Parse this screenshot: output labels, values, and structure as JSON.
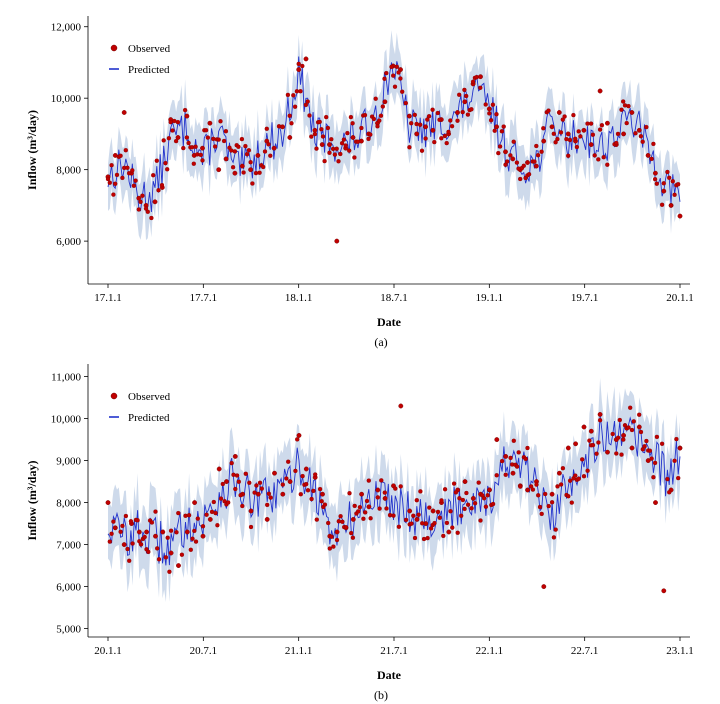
{
  "chart_data": [
    {
      "type": "line",
      "caption": "(a)",
      "xlabel": "Date",
      "ylabel": "Inflow (m³/day)",
      "x_ticks": [
        "17.1.1",
        "17.7.1",
        "18.1.1",
        "18.7.1",
        "19.1.1",
        "19.7.1",
        "20.1.1"
      ],
      "x_range": [
        "2017-01-01",
        "2020-01-01"
      ],
      "ylim": [
        4800,
        12300
      ],
      "y_ticks": [
        6000,
        8000,
        10000,
        12000
      ],
      "y_tick_labels": [
        "6,000",
        "8,000",
        "10,000",
        "12,000"
      ],
      "grid": false,
      "legend": {
        "position": "top-left",
        "entries": [
          "Observed",
          "Predicted"
        ]
      },
      "colors": {
        "observed": "#c00000",
        "predicted": "#2233cc",
        "band": "#c5d3e8"
      },
      "series": [
        {
          "name": "Predicted",
          "kind": "line",
          "x": [
            "2017-01-01",
            "2017-02-01",
            "2017-03-01",
            "2017-04-01",
            "2017-05-01",
            "2017-06-01",
            "2017-07-01",
            "2017-08-01",
            "2017-09-01",
            "2017-10-01",
            "2017-11-01",
            "2017-12-01",
            "2018-01-01",
            "2018-02-01",
            "2018-03-01",
            "2018-04-01",
            "2018-05-01",
            "2018-06-01",
            "2018-07-01",
            "2018-08-01",
            "2018-09-01",
            "2018-10-01",
            "2018-11-01",
            "2018-12-01",
            "2019-01-01",
            "2019-02-01",
            "2019-03-01",
            "2019-04-01",
            "2019-05-01",
            "2019-06-01",
            "2019-07-01",
            "2019-08-01",
            "2019-09-01",
            "2019-10-01",
            "2019-11-01",
            "2019-12-01",
            "2020-01-01"
          ],
          "y": [
            7800,
            8200,
            7200,
            7400,
            8900,
            9200,
            8300,
            9100,
            8000,
            8200,
            8700,
            9000,
            10700,
            9000,
            8800,
            8700,
            9000,
            9700,
            11000,
            9200,
            9100,
            9300,
            9500,
            10200,
            9800,
            8600,
            8100,
            8200,
            9400,
            8800,
            9000,
            8600,
            9000,
            9500,
            8600,
            7700,
            7100
          ]
        },
        {
          "name": "Observed",
          "kind": "scatter",
          "x": [
            "2017-01-01",
            "2017-01-15",
            "2017-02-01",
            "2017-02-15",
            "2017-03-01",
            "2017-03-15",
            "2017-04-01",
            "2017-04-15",
            "2017-05-01",
            "2017-05-15",
            "2017-06-01",
            "2017-06-15",
            "2017-07-01",
            "2017-07-15",
            "2017-08-01",
            "2017-08-15",
            "2017-09-01",
            "2017-09-15",
            "2017-10-01",
            "2017-10-15",
            "2017-11-01",
            "2017-11-15",
            "2017-12-01",
            "2017-12-15",
            "2018-01-01",
            "2018-01-15",
            "2018-02-01",
            "2018-02-15",
            "2018-03-01",
            "2018-03-15",
            "2018-04-01",
            "2018-04-15",
            "2018-05-01",
            "2018-05-15",
            "2018-06-01",
            "2018-06-15",
            "2018-07-01",
            "2018-07-15",
            "2018-08-01",
            "2018-08-15",
            "2018-09-01",
            "2018-09-15",
            "2018-10-01",
            "2018-10-15",
            "2018-11-01",
            "2018-11-15",
            "2018-12-01",
            "2018-12-15",
            "2019-01-01",
            "2019-01-15",
            "2019-02-01",
            "2019-02-15",
            "2019-03-01",
            "2019-03-15",
            "2019-04-01",
            "2019-04-15",
            "2019-05-01",
            "2019-05-15",
            "2019-06-01",
            "2019-06-15",
            "2019-07-01",
            "2019-07-15",
            "2019-08-01",
            "2019-08-15",
            "2019-09-01",
            "2019-09-15",
            "2019-10-01",
            "2019-10-15",
            "2019-11-01",
            "2019-11-15",
            "2019-12-01",
            "2019-12-15",
            "2020-01-01"
          ],
          "y": [
            7800,
            8400,
            9600,
            7900,
            7200,
            7000,
            7100,
            7500,
            9400,
            8900,
            9500,
            8400,
            8600,
            9300,
            8000,
            8300,
            7900,
            8100,
            8000,
            8400,
            8800,
            8600,
            9200,
            8900,
            10800,
            11100,
            9100,
            8700,
            8700,
            6000,
            8600,
            8900,
            8800,
            9000,
            9300,
            9900,
            10900,
            10800,
            9500,
            9000,
            9200,
            9100,
            9400,
            9000,
            9600,
            9900,
            10400,
            10600,
            9700,
            9200,
            8500,
            8300,
            8000,
            8200,
            8100,
            8800,
            9200,
            9600,
            9000,
            8800,
            9100,
            8700,
            10200,
            9300,
            8700,
            9000,
            9600,
            9100,
            8400,
            7900,
            7400,
            7000,
            6700
          ]
        }
      ]
    },
    {
      "type": "line",
      "caption": "(b)",
      "xlabel": "Date",
      "ylabel": "Inflow (m³/day)",
      "x_ticks": [
        "20.1.1",
        "20.7.1",
        "21.1.1",
        "21.7.1",
        "22.1.1",
        "22.7.1",
        "23.1.1"
      ],
      "x_range": [
        "2020-01-01",
        "2023-01-01"
      ],
      "ylim": [
        4800,
        11300
      ],
      "y_ticks": [
        5000,
        6000,
        7000,
        8000,
        9000,
        10000,
        11000
      ],
      "y_tick_labels": [
        "5,000",
        "6,000",
        "7,000",
        "8,000",
        "9,000",
        "10,000",
        "11,000"
      ],
      "grid": false,
      "legend": {
        "position": "top-left",
        "entries": [
          "Observed",
          "Predicted"
        ]
      },
      "colors": {
        "observed": "#c00000",
        "predicted": "#2233cc",
        "band": "#c5d3e8"
      },
      "series": [
        {
          "name": "Predicted",
          "kind": "line",
          "x": [
            "2020-01-01",
            "2020-02-01",
            "2020-03-01",
            "2020-04-01",
            "2020-05-01",
            "2020-06-01",
            "2020-07-01",
            "2020-08-01",
            "2020-09-01",
            "2020-10-01",
            "2020-11-01",
            "2020-12-01",
            "2021-01-01",
            "2021-02-01",
            "2021-03-01",
            "2021-04-01",
            "2021-05-01",
            "2021-06-01",
            "2021-07-01",
            "2021-08-01",
            "2021-09-01",
            "2021-10-01",
            "2021-11-01",
            "2021-12-01",
            "2022-01-01",
            "2022-02-01",
            "2022-03-01",
            "2022-04-01",
            "2022-05-01",
            "2022-06-01",
            "2022-07-01",
            "2022-08-01",
            "2022-09-01",
            "2022-10-01",
            "2022-11-01",
            "2022-12-01",
            "2023-01-01"
          ],
          "y": [
            7500,
            7200,
            7300,
            7100,
            6900,
            7600,
            7500,
            8200,
            8600,
            8000,
            8100,
            8300,
            8900,
            8300,
            7300,
            7400,
            7900,
            8200,
            8100,
            7800,
            7700,
            7600,
            7900,
            8200,
            8100,
            9000,
            8800,
            8400,
            7500,
            8600,
            9000,
            9600,
            9400,
            9600,
            9300,
            8600,
            9100
          ]
        },
        {
          "name": "Observed",
          "kind": "scatter",
          "x": [
            "2020-01-01",
            "2020-01-15",
            "2020-02-01",
            "2020-02-15",
            "2020-03-01",
            "2020-03-15",
            "2020-04-01",
            "2020-04-15",
            "2020-05-01",
            "2020-05-15",
            "2020-06-01",
            "2020-06-15",
            "2020-07-01",
            "2020-07-15",
            "2020-08-01",
            "2020-08-15",
            "2020-09-01",
            "2020-09-15",
            "2020-10-01",
            "2020-10-15",
            "2020-11-01",
            "2020-11-15",
            "2020-12-01",
            "2020-12-15",
            "2021-01-01",
            "2021-01-15",
            "2021-02-01",
            "2021-02-15",
            "2021-03-01",
            "2021-03-15",
            "2021-04-01",
            "2021-04-15",
            "2021-05-01",
            "2021-05-15",
            "2021-06-01",
            "2021-06-15",
            "2021-07-01",
            "2021-07-15",
            "2021-08-01",
            "2021-08-15",
            "2021-09-01",
            "2021-09-15",
            "2021-10-01",
            "2021-10-15",
            "2021-11-01",
            "2021-11-15",
            "2021-12-01",
            "2021-12-15",
            "2022-01-01",
            "2022-01-15",
            "2022-02-01",
            "2022-02-15",
            "2022-03-01",
            "2022-03-15",
            "2022-04-01",
            "2022-04-15",
            "2022-05-01",
            "2022-05-15",
            "2022-06-01",
            "2022-06-15",
            "2022-07-01",
            "2022-07-15",
            "2022-08-01",
            "2022-08-15",
            "2022-09-01",
            "2022-09-15",
            "2022-10-01",
            "2022-10-15",
            "2022-11-01",
            "2022-11-15",
            "2022-12-01",
            "2022-12-15",
            "2023-01-01"
          ],
          "y": [
            8000,
            7400,
            7000,
            7500,
            7300,
            7300,
            7200,
            7300,
            6800,
            6500,
            7300,
            8000,
            7200,
            7600,
            8800,
            8500,
            9100,
            8200,
            7800,
            8200,
            7600,
            8700,
            8200,
            8500,
            9600,
            8800,
            8600,
            8200,
            7200,
            7300,
            7400,
            7600,
            8200,
            7900,
            8300,
            8100,
            8400,
            10300,
            7800,
            7600,
            7500,
            7800,
            8000,
            7300,
            8300,
            8500,
            8100,
            8200,
            8300,
            9500,
            9100,
            8700,
            8400,
            8300,
            8500,
            6000,
            8200,
            8700,
            9300,
            9400,
            9800,
            9700,
            10100,
            9200,
            9500,
            9600,
            9300,
            9800,
            9000,
            8000,
            5900,
            8300,
            9300
          ]
        }
      ]
    }
  ]
}
